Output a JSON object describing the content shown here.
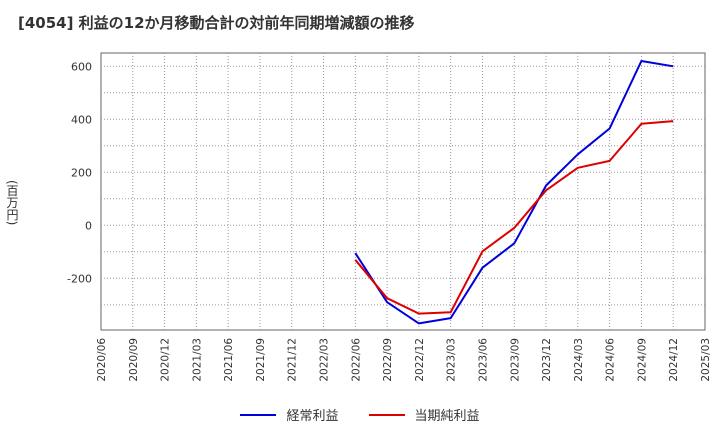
{
  "chart_data": {
    "type": "line",
    "title": "[4054]  利益の12か月移動合計の対前年同期増減額の推移",
    "ylabel": "(百万円)",
    "xlabel": "",
    "ylim": [
      -395,
      650
    ],
    "yticks": [
      600,
      400,
      200,
      0,
      -200
    ],
    "ytick_labels": [
      "600",
      "400",
      "200",
      "0",
      "-200"
    ],
    "categories": [
      "2020/06",
      "2020/09",
      "2020/12",
      "2021/03",
      "2021/06",
      "2021/09",
      "2021/12",
      "2022/03",
      "2022/06",
      "2022/09",
      "2022/12",
      "2023/03",
      "2023/06",
      "2023/09",
      "2023/12",
      "2024/03",
      "2024/06",
      "2024/09",
      "2024/12",
      "2025/03"
    ],
    "grid": true,
    "legend_position": "bottom",
    "series": [
      {
        "name": "経常利益",
        "color": "#0000dd",
        "values": [
          null,
          null,
          null,
          null,
          null,
          null,
          null,
          null,
          -105,
          -290,
          -370,
          -350,
          -160,
          -68,
          150,
          268,
          365,
          620,
          600,
          null
        ]
      },
      {
        "name": "当期純利益",
        "color": "#dd0000",
        "values": [
          null,
          null,
          null,
          null,
          null,
          null,
          null,
          null,
          -130,
          -275,
          -333,
          -328,
          -98,
          -10,
          132,
          217,
          243,
          383,
          393,
          null
        ]
      }
    ]
  }
}
